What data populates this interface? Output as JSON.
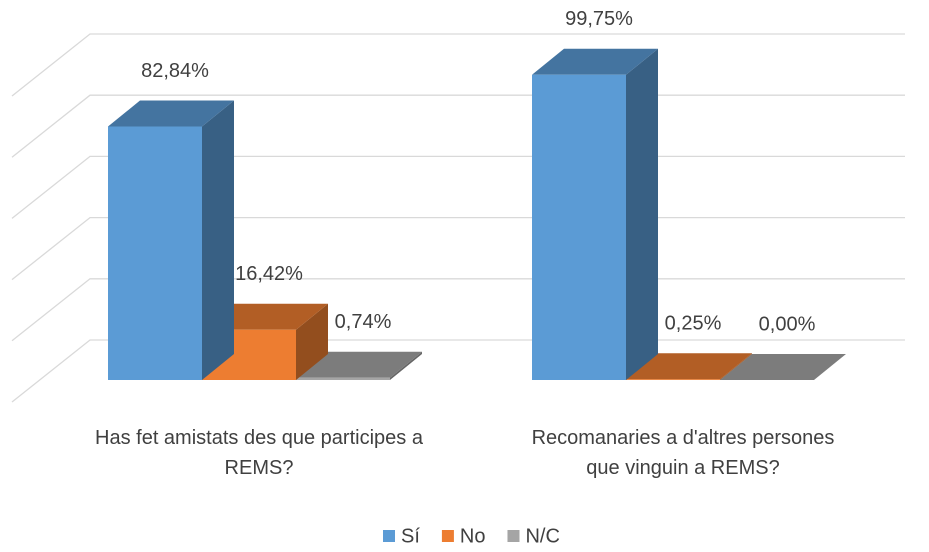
{
  "chart_data": {
    "type": "bar3d",
    "categories": [
      "Has fet amistats des que participes a REMS?",
      "Recomanaries a d'altres persones que vinguin a REMS?"
    ],
    "series": [
      {
        "name": "Sí",
        "color": "#5b9bd5",
        "values": [
          82.84,
          99.75
        ],
        "value_labels": [
          "82,84%",
          "99,75%"
        ]
      },
      {
        "name": "No",
        "color": "#ed7d31",
        "values": [
          16.42,
          0.25
        ],
        "value_labels": [
          "16,42%",
          "0,25%"
        ]
      },
      {
        "name": "N/C",
        "color": "#a5a5a5",
        "values": [
          0.74,
          0.0
        ],
        "value_labels": [
          "0,74%",
          "0,00%"
        ]
      }
    ],
    "ylim": [
      0,
      100
    ],
    "yticks": [
      0,
      20,
      40,
      60,
      80,
      100
    ],
    "grid": true,
    "legend": "bottom"
  }
}
